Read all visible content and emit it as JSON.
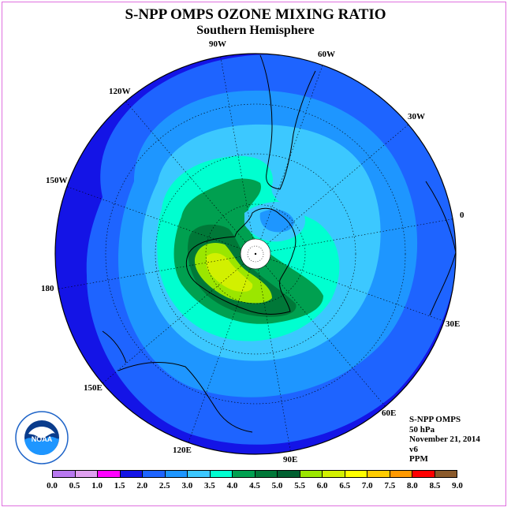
{
  "title": "S-NPP OMPS OZONE MIXING RATIO",
  "subtitle": "Southern Hemisphere",
  "logo_text": "NOAA",
  "longitude_labels": [
    "90W",
    "60W",
    "30W",
    "0",
    "30E",
    "60E",
    "90E",
    "120E",
    "150E",
    "180",
    "150W",
    "120W"
  ],
  "info": {
    "instrument": "S-NPP OMPS",
    "level": "50 hPa",
    "date": "November 21, 2014",
    "version": "v6",
    "units": "PPM"
  },
  "legend": {
    "ticks": [
      "0.0",
      "0.5",
      "1.0",
      "1.5",
      "2.0",
      "2.5",
      "3.0",
      "3.5",
      "4.0",
      "4.5",
      "5.0",
      "5.5",
      "6.0",
      "6.5",
      "7.0",
      "7.5",
      "8.0",
      "8.5",
      "9.0"
    ],
    "colors": [
      "#b878f0",
      "#e0a0f0",
      "#ff00ff",
      "#c800c8",
      "#1414e6",
      "#1e64ff",
      "#1e96ff",
      "#3cc8ff",
      "#00ffd0",
      "#00a050",
      "#007838",
      "#006030",
      "#9be600",
      "#d2f000",
      "#ffff00",
      "#ffcc00",
      "#ff9900",
      "#ff6600",
      "#ff0000",
      "#c80000",
      "#8b5a2b"
    ]
  },
  "chart_data": {
    "type": "heatmap",
    "projection": "south polar stereographic",
    "variable": "ozone mixing ratio",
    "units": "PPM",
    "level": "50 hPa",
    "color_scale_range": [
      0.0,
      9.0
    ],
    "color_interval": 0.5,
    "regions": [
      {
        "description": "outer ring / equatorward",
        "value_range": [
          2.0,
          2.5
        ]
      },
      {
        "description": "mid latitudes",
        "value_range": [
          2.5,
          3.5
        ]
      },
      {
        "description": "collar ring",
        "value_range": [
          3.5,
          4.5
        ]
      },
      {
        "description": "high ozone crescent over Ross Sea / East Antarctica",
        "value_range": [
          4.5,
          6.0
        ]
      },
      {
        "description": "over South America / Antarctic Peninsula",
        "value_range": [
          2.5,
          3.5
        ]
      }
    ]
  }
}
